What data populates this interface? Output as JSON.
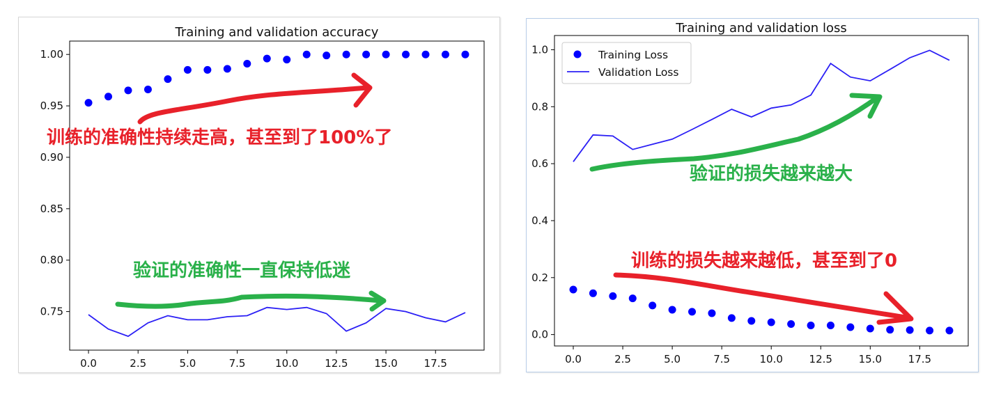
{
  "chart_data": [
    {
      "type": "scatter+line",
      "title": "Training and validation accuracy",
      "xlabel": "",
      "ylabel": "",
      "xlim": [
        -0.95,
        19.95
      ],
      "ylim": [
        0.7125,
        1.013
      ],
      "xticks": [
        "0.0",
        "2.5",
        "5.0",
        "7.5",
        "10.0",
        "12.5",
        "15.0",
        "17.5"
      ],
      "yticks": [
        "0.75",
        "0.80",
        "0.85",
        "0.90",
        "0.95",
        "1.00"
      ],
      "x": [
        0,
        1,
        2,
        3,
        4,
        5,
        6,
        7,
        8,
        9,
        10,
        11,
        12,
        13,
        14,
        15,
        16,
        17,
        18,
        19
      ],
      "series": [
        {
          "style": "dots",
          "color": "#0000ff",
          "values": [
            0.953,
            0.959,
            0.965,
            0.966,
            0.976,
            0.985,
            0.985,
            0.986,
            0.991,
            0.996,
            0.995,
            1.0,
            0.999,
            1.0,
            1.0,
            1.0,
            1.0,
            1.0,
            1.0,
            1.0
          ]
        },
        {
          "style": "line",
          "color": "#2b1ff5",
          "values": [
            0.747,
            0.733,
            0.726,
            0.739,
            0.746,
            0.742,
            0.742,
            0.745,
            0.746,
            0.754,
            0.752,
            0.754,
            0.748,
            0.731,
            0.739,
            0.753,
            0.75,
            0.744,
            0.74,
            0.749
          ]
        }
      ],
      "annotations": [
        {
          "text": "训练的准确性持续走高，甚至到了100%了",
          "color": "#e8212a"
        },
        {
          "text": "验证的准确性一直保持低迷",
          "color": "#2ab14a"
        }
      ]
    },
    {
      "type": "scatter+line",
      "title": "Training and validation loss",
      "xlabel": "",
      "ylabel": "",
      "xlim": [
        -0.95,
        19.95
      ],
      "ylim": [
        -0.04,
        1.05
      ],
      "xticks": [
        "0.0",
        "2.5",
        "5.0",
        "7.5",
        "10.0",
        "12.5",
        "15.0",
        "17.5"
      ],
      "yticks": [
        "0.0",
        "0.2",
        "0.4",
        "0.6",
        "0.8",
        "1.0"
      ],
      "x": [
        0,
        1,
        2,
        3,
        4,
        5,
        6,
        7,
        8,
        9,
        10,
        11,
        12,
        13,
        14,
        15,
        16,
        17,
        18,
        19
      ],
      "legend": {
        "placement": "upper-left"
      },
      "series": [
        {
          "name": "Training Loss",
          "style": "dots",
          "color": "#0000ff",
          "values": [
            0.158,
            0.145,
            0.135,
            0.127,
            0.102,
            0.087,
            0.08,
            0.075,
            0.058,
            0.048,
            0.043,
            0.037,
            0.032,
            0.032,
            0.026,
            0.021,
            0.017,
            0.016,
            0.014,
            0.014
          ]
        },
        {
          "name": "Validation Loss",
          "style": "line",
          "color": "#2b1ff5",
          "values": [
            0.607,
            0.701,
            0.697,
            0.65,
            0.668,
            0.686,
            0.72,
            0.755,
            0.791,
            0.764,
            0.795,
            0.806,
            0.841,
            0.952,
            0.904,
            0.891,
            0.931,
            0.972,
            0.998,
            0.963
          ]
        }
      ],
      "annotations": [
        {
          "text": "验证的损失越来越大",
          "color": "#2ab14a"
        },
        {
          "text": "训练的损失越来越低，甚至到了0",
          "color": "#e8212a"
        }
      ]
    }
  ]
}
